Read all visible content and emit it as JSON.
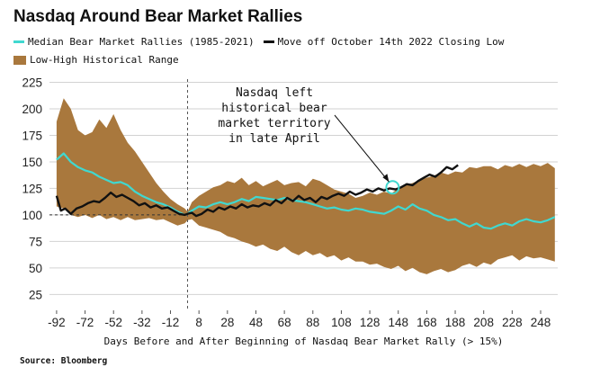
{
  "header": {
    "title": "Nasdaq Around Bear Market Rallies"
  },
  "legend": {
    "median": "Median Bear Market Rallies (1985-2021)",
    "move": "Move off October 14th 2022 Closing Low",
    "range": "Low-High Historical Range"
  },
  "source": "Source: Bloomberg",
  "colors": {
    "median": "#40d8d0",
    "move": "#111111",
    "range": "#a9783d",
    "marker": "#40d8d0"
  },
  "chart_data": {
    "type": "area",
    "title": "Nasdaq Around Bear Market Rallies",
    "xlabel": "Days Before and After Beginning of Nasdaq Bear Market Rally (> 15%)",
    "ylabel": "",
    "xlim": [
      -97,
      260
    ],
    "ylim": [
      10,
      228
    ],
    "grid": true,
    "reference_line": {
      "y": 100
    },
    "event_line": {
      "x": 0
    },
    "legend_position": "top",
    "x_ticks": [
      -92,
      -72,
      -52,
      -32,
      -12,
      8,
      28,
      48,
      68,
      88,
      108,
      128,
      148,
      168,
      188,
      208,
      228,
      248
    ],
    "y_ticks": [
      25,
      50,
      75,
      100,
      125,
      150,
      175,
      200,
      225
    ],
    "series": [
      {
        "name": "Low-High Historical Range",
        "type": "band",
        "x": [
          -92,
          -87,
          -82,
          -77,
          -72,
          -67,
          -62,
          -57,
          -52,
          -47,
          -42,
          -37,
          -32,
          -27,
          -22,
          -17,
          -12,
          -7,
          -2,
          0,
          3,
          8,
          13,
          18,
          23,
          28,
          33,
          38,
          43,
          48,
          53,
          58,
          63,
          68,
          73,
          78,
          83,
          88,
          93,
          98,
          103,
          108,
          113,
          118,
          123,
          128,
          133,
          138,
          143,
          148,
          153,
          158,
          163,
          168,
          173,
          178,
          183,
          188,
          193,
          198,
          203,
          208,
          213,
          218,
          223,
          228,
          233,
          238,
          243,
          248,
          253,
          258
        ],
        "high": [
          188,
          210,
          200,
          180,
          175,
          178,
          190,
          182,
          195,
          180,
          168,
          160,
          150,
          140,
          130,
          122,
          115,
          110,
          106,
          103,
          112,
          118,
          122,
          126,
          128,
          132,
          130,
          135,
          128,
          132,
          127,
          130,
          133,
          128,
          130,
          131,
          127,
          134,
          132,
          128,
          124,
          122,
          120,
          116,
          118,
          121,
          119,
          122,
          120,
          125,
          128,
          130,
          133,
          135,
          137,
          140,
          138,
          141,
          140,
          145,
          144,
          146,
          146,
          143,
          147,
          145,
          148,
          145,
          148,
          146,
          149,
          144
        ],
        "low": [
          108,
          106,
          100,
          98,
          100,
          97,
          100,
          96,
          98,
          95,
          98,
          95,
          96,
          97,
          95,
          96,
          93,
          90,
          92,
          95,
          96,
          90,
          88,
          86,
          84,
          80,
          78,
          75,
          73,
          70,
          72,
          68,
          66,
          70,
          65,
          62,
          66,
          62,
          64,
          60,
          62,
          57,
          60,
          56,
          56,
          53,
          54,
          51,
          49,
          52,
          47,
          50,
          46,
          44,
          47,
          49,
          46,
          48,
          52,
          54,
          51,
          55,
          53,
          58,
          60,
          62,
          57,
          61,
          59,
          60,
          58,
          56
        ]
      },
      {
        "name": "Median Bear Market Rallies (1985-2021)",
        "type": "line",
        "x": [
          -92,
          -87,
          -82,
          -77,
          -72,
          -67,
          -62,
          -57,
          -52,
          -47,
          -42,
          -37,
          -32,
          -27,
          -22,
          -17,
          -12,
          -7,
          -2,
          0,
          3,
          8,
          13,
          18,
          23,
          28,
          33,
          38,
          43,
          48,
          53,
          58,
          63,
          68,
          73,
          78,
          83,
          88,
          93,
          98,
          103,
          108,
          113,
          118,
          123,
          128,
          133,
          138,
          143,
          148,
          153,
          158,
          163,
          168,
          173,
          178,
          183,
          188,
          193,
          198,
          203,
          208,
          213,
          218,
          223,
          228,
          233,
          238,
          243,
          248,
          253,
          258
        ],
        "values": [
          152,
          158,
          150,
          145,
          142,
          140,
          136,
          133,
          130,
          131,
          128,
          122,
          118,
          115,
          112,
          110,
          107,
          103,
          100,
          101,
          104,
          108,
          107,
          110,
          112,
          110,
          112,
          115,
          113,
          117,
          116,
          115,
          114,
          116,
          114,
          113,
          112,
          110,
          108,
          106,
          107,
          105,
          104,
          106,
          105,
          103,
          102,
          101,
          104,
          108,
          105,
          110,
          106,
          104,
          100,
          98,
          95,
          96,
          92,
          89,
          92,
          88,
          87,
          90,
          92,
          90,
          94,
          96,
          94,
          93,
          95,
          98
        ]
      },
      {
        "name": "Move off October 14th 2022 Closing Low",
        "type": "line",
        "x": [
          -92,
          -89,
          -86,
          -82,
          -78,
          -74,
          -70,
          -66,
          -62,
          -58,
          -54,
          -50,
          -46,
          -42,
          -38,
          -34,
          -30,
          -26,
          -22,
          -18,
          -14,
          -10,
          -6,
          -2,
          0,
          3,
          6,
          10,
          14,
          18,
          22,
          26,
          30,
          34,
          38,
          42,
          46,
          50,
          54,
          58,
          62,
          66,
          70,
          74,
          78,
          82,
          86,
          90,
          94,
          98,
          102,
          106,
          110,
          114,
          118,
          122,
          126,
          130,
          134,
          138,
          142,
          146,
          150,
          154,
          158,
          162,
          166,
          170,
          174,
          178,
          182,
          186,
          190
        ],
        "values": [
          118,
          104,
          106,
          101,
          106,
          108,
          111,
          113,
          112,
          116,
          121,
          117,
          119,
          116,
          113,
          109,
          111,
          107,
          109,
          106,
          107,
          104,
          101,
          100,
          101,
          102,
          99,
          101,
          105,
          103,
          107,
          105,
          108,
          106,
          110,
          107,
          109,
          108,
          111,
          109,
          114,
          111,
          116,
          113,
          118,
          114,
          116,
          112,
          117,
          115,
          118,
          120,
          118,
          122,
          119,
          121,
          124,
          122,
          125,
          123,
          125,
          124,
          126,
          129,
          128,
          132,
          135,
          138,
          136,
          140,
          145,
          143,
          147
        ]
      }
    ],
    "annotation": {
      "lines": [
        "Nasdaq left",
        "historical bear",
        "market territory",
        "in late April"
      ],
      "target_x": 144,
      "target_y": 126
    }
  }
}
